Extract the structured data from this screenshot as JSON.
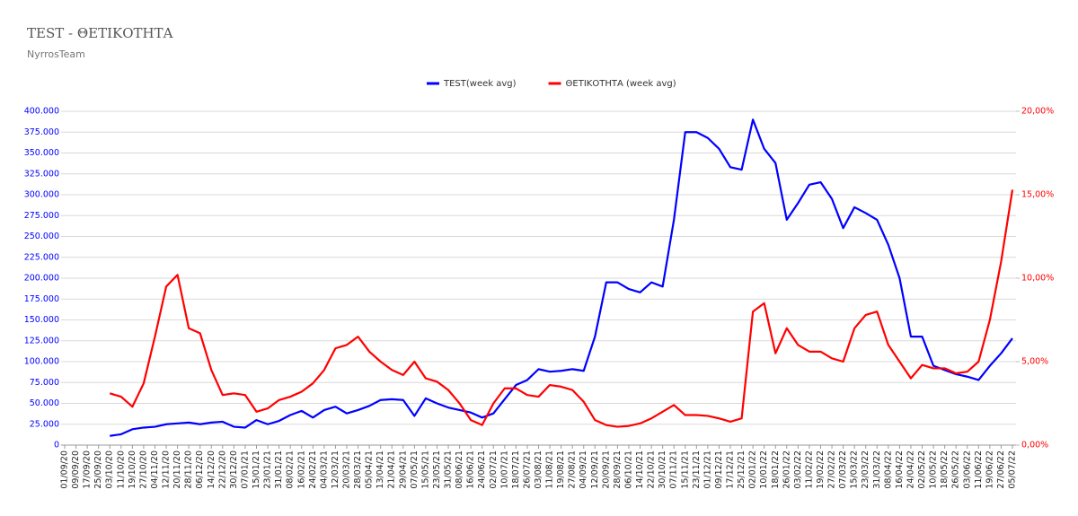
{
  "chart_data": {
    "type": "line",
    "title": "TEST - ΘΕΤΙΚΟΤΗΤΑ",
    "subtitle": "NyrrosTeam",
    "categories": [
      "01/09/20",
      "09/09/20",
      "17/09/20",
      "25/09/20",
      "03/10/20",
      "11/10/20",
      "19/10/20",
      "27/10/20",
      "04/11/20",
      "12/11/20",
      "20/11/20",
      "28/11/20",
      "06/12/20",
      "14/12/20",
      "22/12/20",
      "30/12/20",
      "07/01/21",
      "15/01/21",
      "23/01/21",
      "31/01/21",
      "08/02/21",
      "16/02/21",
      "24/02/21",
      "04/03/21",
      "12/03/21",
      "20/03/21",
      "28/03/21",
      "05/04/21",
      "13/04/21",
      "21/04/21",
      "29/04/21",
      "07/05/21",
      "15/05/21",
      "23/05/21",
      "31/05/21",
      "08/06/21",
      "16/06/21",
      "24/06/21",
      "02/07/21",
      "10/07/21",
      "18/07/21",
      "26/07/21",
      "03/08/21",
      "11/08/21",
      "19/08/21",
      "27/08/21",
      "04/09/21",
      "12/09/21",
      "20/09/21",
      "28/09/21",
      "06/10/21",
      "14/10/21",
      "22/10/21",
      "30/10/21",
      "07/11/21",
      "15/11/21",
      "23/11/21",
      "01/12/21",
      "09/12/21",
      "17/12/21",
      "25/12/21",
      "02/01/22",
      "10/01/22",
      "18/01/22",
      "26/01/22",
      "03/02/22",
      "11/02/22",
      "19/02/22",
      "27/02/22",
      "07/03/22",
      "15/03/22",
      "23/03/22",
      "31/03/22",
      "08/04/22",
      "16/04/22",
      "24/04/22",
      "02/05/22",
      "10/05/22",
      "18/05/22",
      "26/05/22",
      "03/06/22",
      "11/06/22",
      "19/06/22",
      "27/06/22",
      "05/07/22"
    ],
    "series": [
      {
        "name": "TEST(week avg)",
        "color": "#0000ff",
        "axis": "y",
        "values": [
          null,
          null,
          null,
          null,
          11000,
          13000,
          19000,
          21000,
          22000,
          25000,
          26000,
          27000,
          25000,
          27000,
          28000,
          22000,
          21000,
          30000,
          25000,
          29000,
          36000,
          41000,
          33000,
          42000,
          46000,
          38000,
          42000,
          47000,
          54000,
          55000,
          54000,
          35000,
          56000,
          50000,
          45000,
          42000,
          39000,
          33000,
          38000,
          55000,
          72000,
          78000,
          91000,
          88000,
          89000,
          91000,
          89000,
          130000,
          195000,
          195000,
          187000,
          183000,
          195000,
          190000,
          270000,
          375000,
          375000,
          368000,
          355000,
          333000,
          330000,
          390000,
          355000,
          338000,
          270000,
          290000,
          312000,
          315000,
          295000,
          260000,
          285000,
          278000,
          270000,
          240000,
          200000,
          130000,
          130000,
          95000,
          90000,
          85000,
          82000,
          78000,
          95000,
          110000,
          128000
        ]
      },
      {
        "name": "ΘΕΤΙΚΟΤΗΤΑ (week avg)",
        "color": "#ff0000",
        "axis": "y2",
        "values": [
          null,
          null,
          null,
          null,
          3.1,
          2.9,
          2.3,
          3.7,
          6.5,
          9.5,
          10.2,
          7.0,
          6.7,
          4.5,
          3.0,
          3.1,
          3.0,
          2.0,
          2.2,
          2.7,
          2.9,
          3.2,
          3.7,
          4.5,
          5.8,
          6.0,
          6.5,
          5.6,
          5.0,
          4.5,
          4.2,
          5.0,
          4.0,
          3.8,
          3.3,
          2.5,
          1.5,
          1.2,
          2.5,
          3.4,
          3.4,
          3.0,
          2.9,
          3.6,
          3.5,
          3.3,
          2.6,
          1.5,
          1.2,
          1.1,
          1.15,
          1.3,
          1.6,
          2.0,
          2.4,
          1.8,
          1.8,
          1.75,
          1.6,
          1.4,
          1.6,
          8.0,
          8.5,
          5.5,
          7.0,
          6.0,
          5.6,
          5.6,
          5.2,
          5.0,
          7.0,
          7.8,
          8.0,
          6.0,
          5.0,
          4.0,
          4.8,
          4.6,
          4.6,
          4.3,
          4.4,
          5.0,
          7.5,
          11.0,
          15.3
        ]
      }
    ],
    "ylim": [
      0,
      400000
    ],
    "yticks": [
      0,
      {
        "value": 25000,
        "label": "25.000"
      },
      {
        "value": 50000,
        "label": "50.000"
      },
      {
        "value": 75000,
        "label": "75.000"
      },
      {
        "value": 100000,
        "label": "100.000"
      },
      {
        "value": 125000,
        "label": "125.000"
      },
      {
        "value": 150000,
        "label": "150.000"
      },
      {
        "value": 175000,
        "label": "175.000"
      },
      {
        "value": 200000,
        "label": "200.000"
      },
      {
        "value": 225000,
        "label": "225.000"
      },
      {
        "value": 250000,
        "label": "250.000"
      },
      {
        "value": 275000,
        "label": "275.000"
      },
      {
        "value": 300000,
        "label": "300.000"
      },
      {
        "value": 325000,
        "label": "325.000"
      },
      {
        "value": 350000,
        "label": "350.000"
      },
      {
        "value": 375000,
        "label": "375.000"
      },
      {
        "value": 400000,
        "label": "400.000"
      }
    ],
    "y2lim": [
      0,
      20
    ],
    "y2ticks": [
      {
        "value": 0,
        "label": "0,00%"
      },
      {
        "value": 5,
        "label": "5,00%"
      },
      {
        "value": 10,
        "label": "10,00%"
      },
      {
        "value": 15,
        "label": "15,00%"
      },
      {
        "value": 20,
        "label": "20,00%"
      }
    ],
    "grid": true,
    "legend": "top"
  }
}
